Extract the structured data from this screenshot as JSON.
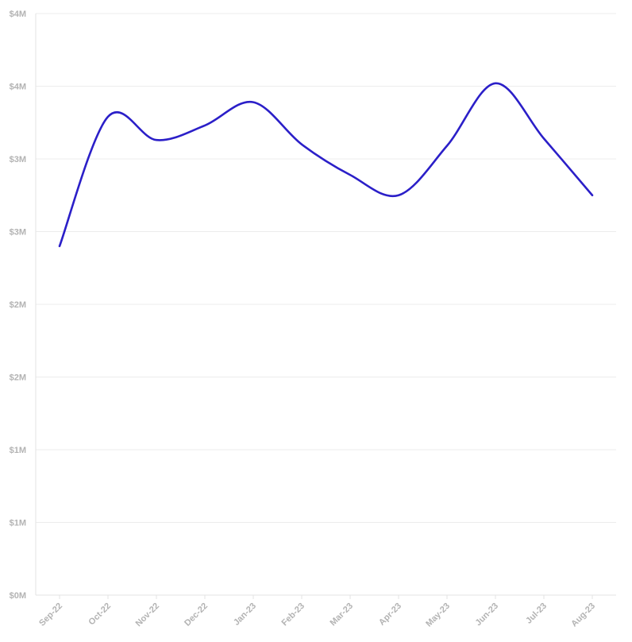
{
  "chart_data": {
    "type": "line",
    "title": "",
    "xlabel": "",
    "ylabel": "",
    "categories": [
      "Sep-22",
      "Oct-22",
      "Nov-22",
      "Dec-22",
      "Jan-23",
      "Feb-23",
      "Mar-23",
      "Apr-23",
      "May-23",
      "Jun-23",
      "Jul-23",
      "Aug-23"
    ],
    "series": [
      {
        "values": [
          2.4,
          3.29,
          3.13,
          3.23,
          3.39,
          3.1,
          2.89,
          2.75,
          3.09,
          3.52,
          3.14,
          2.75
        ]
      }
    ],
    "ylim": [
      0,
      4
    ],
    "y_ticks": [
      0,
      0.5,
      1,
      1.5,
      2,
      2.5,
      3,
      3.5,
      4
    ],
    "y_tick_labels": [
      "$0M",
      "$1M",
      "$1M",
      "$2M",
      "$2M",
      "$3M",
      "$3M",
      "$4M",
      "$4M"
    ],
    "grid": true,
    "legend": "none",
    "colors": {
      "series": "#2b1fc8",
      "grid": "#ececec",
      "tick_text": "#b3b3b3"
    }
  }
}
